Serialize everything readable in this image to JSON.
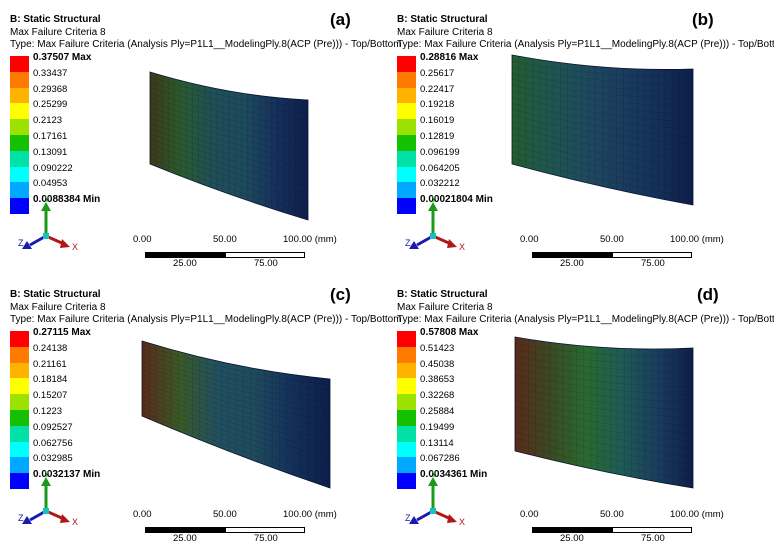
{
  "panels": [
    {
      "id": "a",
      "letter": "(a)",
      "title": "B: Static Structural",
      "subtitle": "Max Failure Criteria 8",
      "type_line": "Type: Max Failure Criteria (Analysis Ply=P1L1__ModelingPly.8(ACP (Pre))) - Top/Bottom",
      "legend": [
        "0.37507 Max",
        "0.33437",
        "0.29368",
        "0.25299",
        "0.2123",
        "0.17161",
        "0.13091",
        "0.090222",
        "0.04953",
        "0.0088384 Min"
      ],
      "scale": {
        "ticks_top": [
          "0.00",
          "50.00",
          "100.00 (mm)"
        ],
        "ticks_bottom": [
          "25.00",
          "75.00"
        ]
      },
      "triad": {
        "y": "Y",
        "x": "X",
        "z": "Z"
      }
    },
    {
      "id": "b",
      "letter": "(b)",
      "title": "B: Static Structural",
      "subtitle": "Max Failure Criteria 8",
      "type_line": "Type: Max Failure Criteria (Analysis Ply=P1L1__ModelingPly.8(ACP (Pre))) - Top/Bottom",
      "legend": [
        "0.28816 Max",
        "0.25617",
        "0.22417",
        "0.19218",
        "0.16019",
        "0.12819",
        "0.096199",
        "0.064205",
        "0.032212",
        "0.00021804 Min"
      ],
      "scale": {
        "ticks_top": [
          "0.00",
          "50.00",
          "100.00 (mm)"
        ],
        "ticks_bottom": [
          "25.00",
          "75.00"
        ]
      },
      "triad": {
        "y": "Y",
        "x": "X",
        "z": "Z"
      }
    },
    {
      "id": "c",
      "letter": "(c)",
      "title": "B: Static Structural",
      "subtitle": "Max Failure Criteria 8",
      "type_line": "Type: Max Failure Criteria (Analysis Ply=P1L1__ModelingPly.8(ACP (Pre))) - Top/Bottom",
      "legend": [
        "0.27115 Max",
        "0.24138",
        "0.21161",
        "0.18184",
        "0.15207",
        "0.1223",
        "0.092527",
        "0.062756",
        "0.032985",
        "0.0032137 Min"
      ],
      "scale": {
        "ticks_top": [
          "0.00",
          "50.00",
          "100.00 (mm)"
        ],
        "ticks_bottom": [
          "25.00",
          "75.00"
        ]
      },
      "triad": {
        "y": "Y",
        "x": "X",
        "z": "Z"
      }
    },
    {
      "id": "d",
      "letter": "(d)",
      "title": "B: Static Structural",
      "subtitle": "Max Failure Criteria 8",
      "type_line": "Type: Max Failure Criteria (Analysis Ply=P1L1__ModelingPly.8(ACP (Pre))) - Top/Bottom",
      "legend": [
        "0.57808 Max",
        "0.51423",
        "0.45038",
        "0.38653",
        "0.32268",
        "0.25884",
        "0.19499",
        "0.13114",
        "0.067286",
        "0.0034361 Min"
      ],
      "scale": {
        "ticks_top": [
          "0.00",
          "50.00",
          "100.00 (mm)"
        ],
        "ticks_bottom": [
          "25.00",
          "75.00"
        ]
      },
      "triad": {
        "y": "Y",
        "x": "X",
        "z": "Z"
      }
    }
  ],
  "colors": {
    "legend_scale": [
      "#ff0000",
      "#ff7a00",
      "#ffb300",
      "#ffff00",
      "#9be200",
      "#15c000",
      "#00e1a5",
      "#00ffff",
      "#00a8ff",
      "#0000ff"
    ],
    "mesh_dark": "#0e1e4a",
    "mesh_mid": "#1f4f5f",
    "mesh_green": "#276a3a",
    "mesh_hot": "#5a2a1a"
  }
}
